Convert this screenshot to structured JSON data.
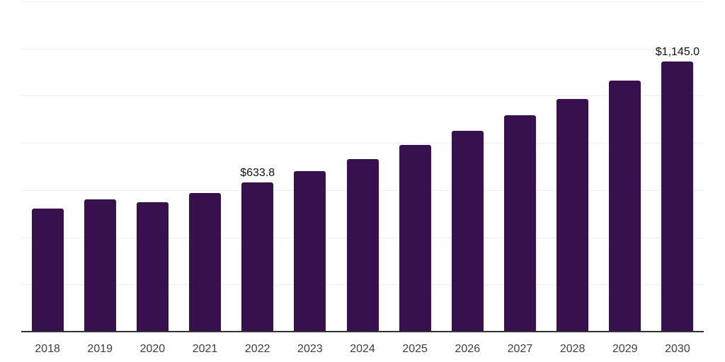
{
  "chart_data": {
    "type": "bar",
    "title": "",
    "xlabel": "",
    "ylabel": "",
    "categories": [
      "2018",
      "2019",
      "2020",
      "2021",
      "2022",
      "2023",
      "2024",
      "2025",
      "2026",
      "2027",
      "2028",
      "2029",
      "2030"
    ],
    "values": [
      523,
      561,
      548,
      588,
      633.8,
      681,
      732,
      790,
      851,
      916,
      986,
      1063,
      1145
    ],
    "value_labels": [
      {
        "category": "2022",
        "text": "$633.8"
      },
      {
        "category": "2030",
        "text": "$1,145.0"
      }
    ],
    "ylim": [
      0,
      1400
    ],
    "gridline_step": 200,
    "grid": "horizontal",
    "legend": "none",
    "y_tick_labels_visible": false,
    "colors": {
      "bar": "#36114E",
      "gridline": "#f0f0f0",
      "axis_line": "#333333",
      "value_label": "#111111",
      "tick_label": "#3d3d3d",
      "background": "#ffffff"
    }
  }
}
